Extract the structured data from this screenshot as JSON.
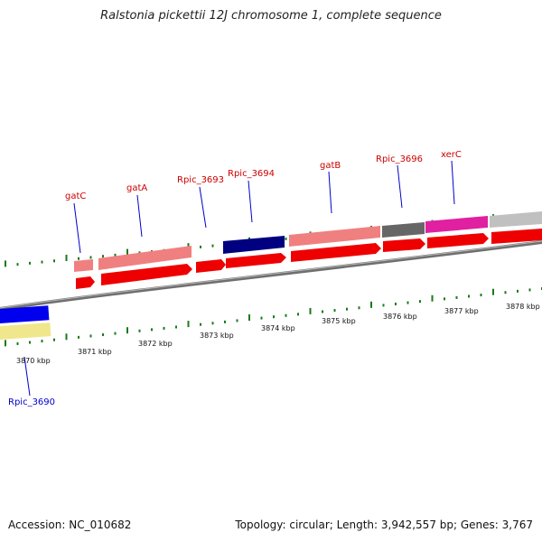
{
  "title": "Ralstonia pickettii 12J chromosome 1, complete sequence",
  "footer": {
    "accession": "Accession: NC_010682",
    "summary": "Topology: circular; Length: 3,942,557 bp; Genes: 3,767"
  },
  "colors": {
    "gene_label": "#cc0000",
    "minus_label": "#0000cc",
    "tick": "#1a7a1a",
    "backbone": "#7f7f7f",
    "cds": "#ee0000",
    "rrna_like": "#f08080",
    "navy": "#000080",
    "gray": "#666666",
    "magenta": "#e020a0",
    "lightgray": "#c0c0c0",
    "blue": "#0000ee",
    "khaki": "#f0e68c"
  },
  "ticks": [
    "3870 kbp",
    "3871 kbp",
    "3872 kbp",
    "3873 kbp",
    "3874 kbp",
    "3875 kbp",
    "3876 kbp",
    "3877 kbp",
    "3878 kbp"
  ],
  "plus_genes": [
    "gatC",
    "gatA",
    "Rpic_3693",
    "Rpic_3694",
    "gatB",
    "Rpic_3696",
    "xerC"
  ],
  "minus_genes": [
    "Rpic_3690"
  ]
}
